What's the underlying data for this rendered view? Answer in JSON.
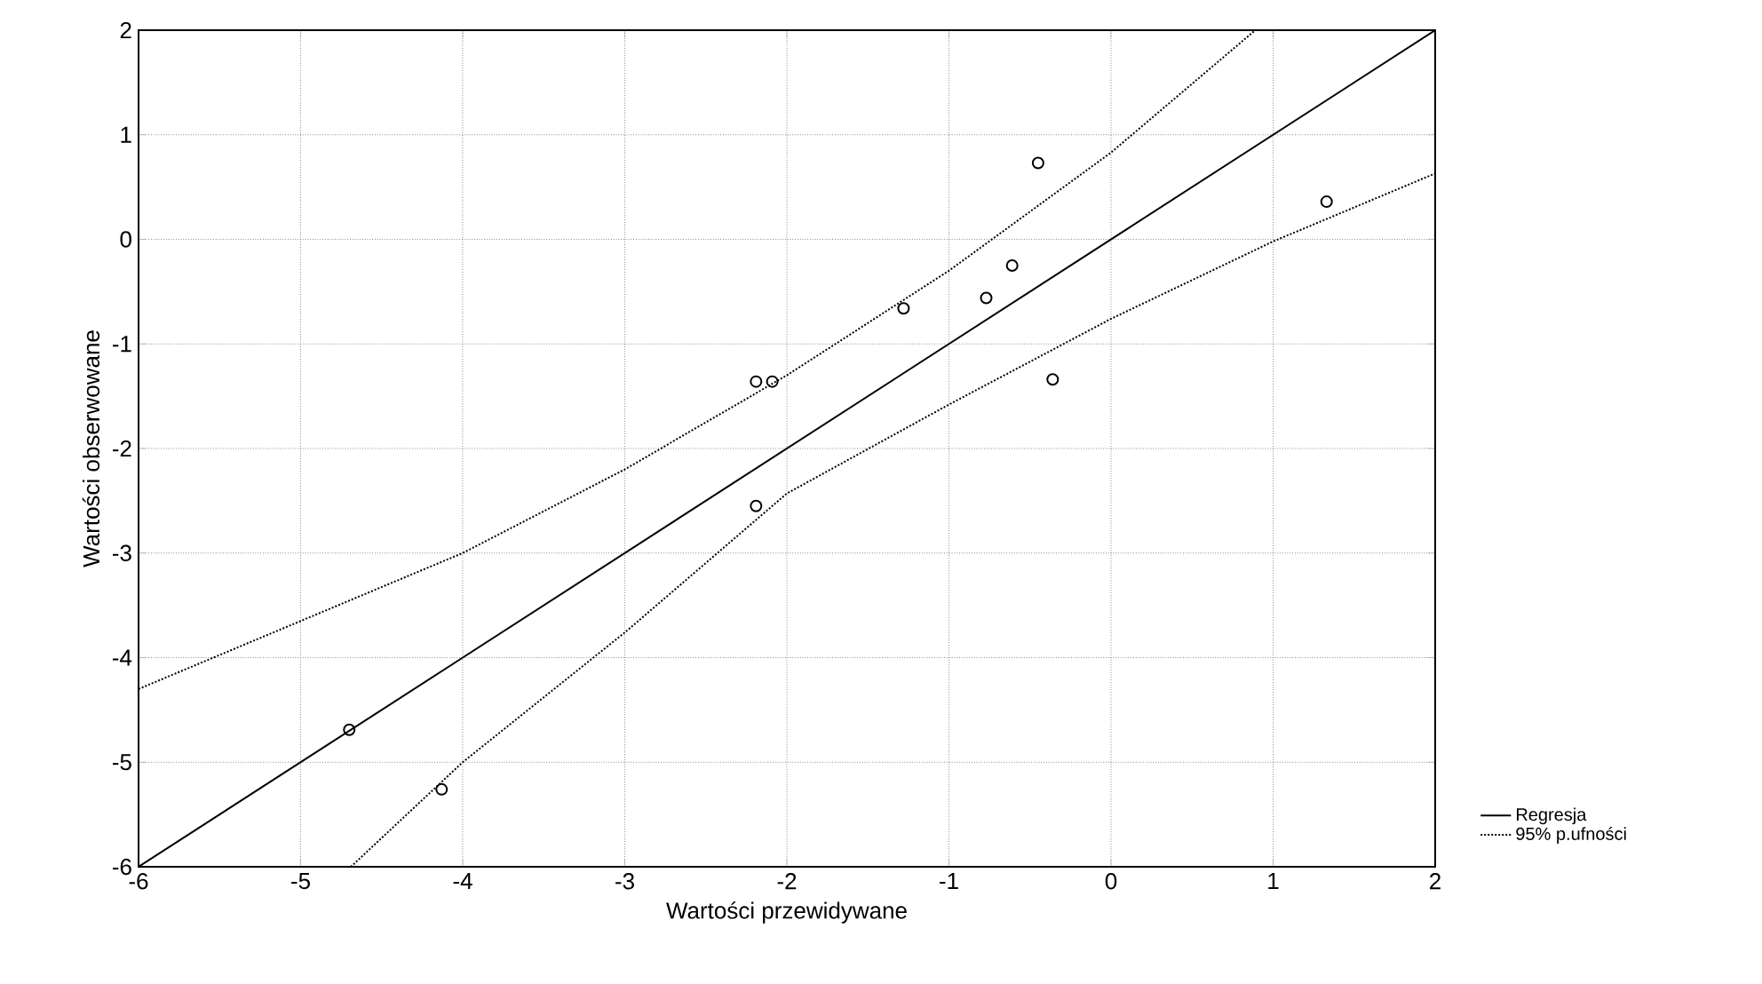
{
  "chart_data": {
    "type": "scatter",
    "xlabel": "Wartości przewidywane",
    "ylabel": "Wartości obserwowane",
    "xlim": [
      -6,
      2
    ],
    "ylim": [
      -6,
      2
    ],
    "xticks": [
      -6,
      -5,
      -4,
      -3,
      -2,
      -1,
      0,
      1,
      2
    ],
    "yticks": [
      -6,
      -5,
      -4,
      -3,
      -2,
      -1,
      0,
      1,
      2
    ],
    "grid": true,
    "legend": "right",
    "series": [
      {
        "marker": "circle",
        "color": "#000000",
        "x": [
          -0.45,
          1.33,
          -0.61,
          -0.77,
          -1.28,
          -0.36,
          -2.19,
          -2.09,
          -2.19,
          -4.7,
          -4.13
        ],
        "values": [
          0.73,
          0.36,
          -0.25,
          -0.56,
          -0.66,
          -1.34,
          -1.36,
          -1.36,
          -2.55,
          -4.69,
          -5.26
        ]
      },
      {
        "type": "line",
        "name": "Regresja",
        "line_style": "solid",
        "color": "#000000",
        "x": [
          -6,
          2
        ],
        "values": [
          -6,
          2
        ]
      },
      {
        "type": "line",
        "name": "95% p.ufności",
        "line_style": "dotted",
        "color": "#000000",
        "x": [
          -6,
          -5,
          -4,
          -3,
          -2,
          -1,
          0,
          0.89
        ],
        "values": [
          -4.3,
          -3.65,
          -3.0,
          -2.2,
          -1.3,
          -0.3,
          0.83,
          2.0
        ]
      },
      {
        "type": "line",
        "line_style": "dotted",
        "color": "#000000",
        "x": [
          -4.69,
          -4,
          -3,
          -2,
          -1,
          0,
          1,
          2
        ],
        "values": [
          -6,
          -5,
          -3.76,
          -2.43,
          -1.58,
          -0.76,
          -0.02,
          0.63
        ]
      }
    ]
  }
}
